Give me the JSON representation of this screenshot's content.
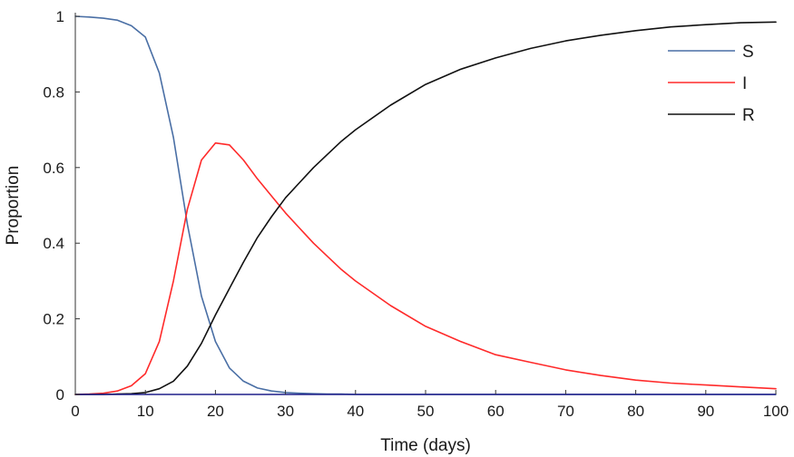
{
  "chart_data": {
    "type": "line",
    "title": "",
    "xlabel": "Time (days)",
    "ylabel": "Proportion",
    "xlim": [
      0,
      100
    ],
    "ylim": [
      0,
      1
    ],
    "x_ticks": [
      0,
      10,
      20,
      30,
      40,
      50,
      60,
      70,
      80,
      90,
      100
    ],
    "y_ticks": [
      0,
      0.2,
      0.4,
      0.6,
      0.8,
      1
    ],
    "y_tick_labels": [
      "0",
      "0.2",
      "0.4",
      "0.6",
      "0.8",
      "1"
    ],
    "grid": false,
    "legend_position": "top-right",
    "x": [
      0,
      2,
      4,
      6,
      8,
      10,
      12,
      14,
      16,
      18,
      20,
      22,
      24,
      26,
      28,
      30,
      32,
      34,
      36,
      38,
      40,
      45,
      50,
      55,
      60,
      65,
      70,
      75,
      80,
      85,
      90,
      95,
      100
    ],
    "series": [
      {
        "name": "S",
        "color": "#4a6fa5",
        "values": [
          1.0,
          0.998,
          0.995,
          0.99,
          0.975,
          0.945,
          0.85,
          0.68,
          0.45,
          0.26,
          0.14,
          0.07,
          0.035,
          0.017,
          0.009,
          0.005,
          0.003,
          0.002,
          0.001,
          0.001,
          0.0,
          0.0,
          0.0,
          0.0,
          0.0,
          0.0,
          0.0,
          0.0,
          0.0,
          0.0,
          0.0,
          0.0,
          0.0
        ]
      },
      {
        "name": "I",
        "color": "#ff2a2a",
        "values": [
          0.0,
          0.001,
          0.003,
          0.009,
          0.023,
          0.055,
          0.14,
          0.3,
          0.49,
          0.62,
          0.665,
          0.66,
          0.62,
          0.57,
          0.525,
          0.48,
          0.44,
          0.4,
          0.365,
          0.33,
          0.3,
          0.235,
          0.18,
          0.14,
          0.105,
          0.085,
          0.065,
          0.05,
          0.038,
          0.03,
          0.025,
          0.02,
          0.015
        ]
      },
      {
        "name": "R",
        "color": "#111111",
        "values": [
          0.0,
          0.0,
          0.0,
          0.001,
          0.002,
          0.005,
          0.015,
          0.035,
          0.075,
          0.135,
          0.21,
          0.28,
          0.35,
          0.415,
          0.47,
          0.52,
          0.56,
          0.6,
          0.635,
          0.67,
          0.7,
          0.765,
          0.82,
          0.86,
          0.89,
          0.915,
          0.935,
          0.95,
          0.962,
          0.972,
          0.978,
          0.983,
          0.985
        ]
      }
    ]
  }
}
